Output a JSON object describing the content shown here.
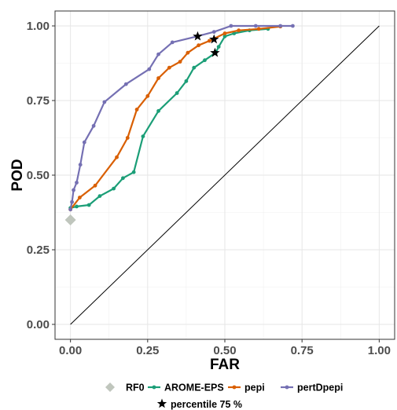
{
  "chart_data": {
    "type": "line",
    "xlabel": "FAR",
    "ylabel": "POD",
    "xlim": [
      -0.05,
      1.05
    ],
    "ylim": [
      -0.05,
      1.05
    ],
    "x_ticks": [
      0.0,
      0.25,
      0.5,
      0.75,
      1.0
    ],
    "x_tick_labels": [
      "0.00",
      "0.25",
      "0.50",
      "0.75",
      "1.00"
    ],
    "y_ticks": [
      0.0,
      0.25,
      0.5,
      0.75,
      1.0
    ],
    "y_tick_labels": [
      "0.00",
      "0.25",
      "0.50",
      "0.75",
      "1.00"
    ],
    "grid": true,
    "legend_position": "bottom",
    "diagonal": {
      "x": [
        0,
        1
      ],
      "y": [
        0,
        1
      ],
      "color": "#000000"
    },
    "series": [
      {
        "name": "AROME-EPS",
        "color": "#1b9e77",
        "x": [
          0.0,
          0.02,
          0.06,
          0.095,
          0.14,
          0.17,
          0.205,
          0.235,
          0.285,
          0.345,
          0.375,
          0.4,
          0.435,
          0.47,
          0.48,
          0.5,
          0.53,
          0.58,
          0.64
        ],
        "y": [
          0.39,
          0.395,
          0.4,
          0.43,
          0.455,
          0.49,
          0.51,
          0.63,
          0.715,
          0.775,
          0.815,
          0.86,
          0.885,
          0.91,
          0.93,
          0.965,
          0.975,
          0.985,
          0.99
        ]
      },
      {
        "name": "pepi",
        "color": "#d95f02",
        "x": [
          0.0,
          0.03,
          0.08,
          0.15,
          0.185,
          0.215,
          0.25,
          0.285,
          0.32,
          0.355,
          0.38,
          0.415,
          0.45,
          0.5,
          0.545,
          0.61,
          0.68
        ],
        "y": [
          0.385,
          0.425,
          0.465,
          0.56,
          0.625,
          0.72,
          0.765,
          0.825,
          0.86,
          0.88,
          0.91,
          0.935,
          0.95,
          0.975,
          0.985,
          0.99,
          0.998
        ]
      },
      {
        "name": "pertDpepi",
        "color": "#7570b3",
        "x": [
          0.0,
          0.005,
          0.01,
          0.02,
          0.032,
          0.045,
          0.075,
          0.11,
          0.18,
          0.255,
          0.285,
          0.33,
          0.41,
          0.465,
          0.52,
          0.6,
          0.68,
          0.72
        ],
        "y": [
          0.385,
          0.41,
          0.45,
          0.475,
          0.535,
          0.61,
          0.665,
          0.745,
          0.805,
          0.855,
          0.905,
          0.945,
          0.965,
          0.98,
          1.0,
          1.0,
          1.0,
          1.0
        ]
      }
    ],
    "percentile_points": {
      "name": "percentile 75 %",
      "color": "#000000",
      "x": [
        0.412,
        0.465,
        0.468
      ],
      "y": [
        0.965,
        0.955,
        0.91
      ]
    },
    "rf0_point": {
      "name": "RF0",
      "color": "#c0c6bd",
      "x": 0.0,
      "y": 0.35
    }
  }
}
